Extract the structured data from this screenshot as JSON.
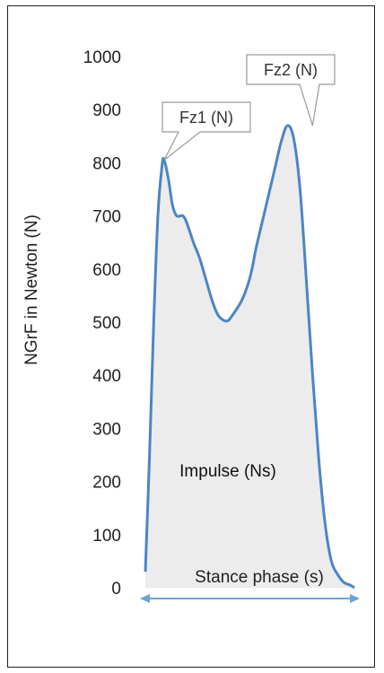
{
  "chart_data": {
    "type": "area",
    "title": "",
    "xlabel": "Stance phase (s)",
    "ylabel": "NGrF in Newton (N)",
    "ylim": [
      0,
      1000
    ],
    "y_ticks": [
      "1000",
      "900",
      "800",
      "700",
      "600",
      "500",
      "400",
      "300",
      "200",
      "100",
      "0"
    ],
    "grid": false,
    "line_color": "#4a86c5",
    "fill_color": "#ececec",
    "arrow_color": "#6aa2d8",
    "area_label": "Impulse (Ns)",
    "annotations": [
      {
        "text": "Fz1 (N)",
        "x": 0.09,
        "y": 805
      },
      {
        "text": "Fz2 (N)",
        "x": 0.8,
        "y": 870
      }
    ],
    "series": [
      {
        "x": [
          0.0,
          0.02,
          0.04,
          0.06,
          0.08,
          0.09,
          0.11,
          0.13,
          0.15,
          0.18,
          0.2,
          0.23,
          0.26,
          0.29,
          0.32,
          0.35,
          0.39,
          0.42,
          0.46,
          0.49,
          0.51,
          0.53,
          0.56,
          0.59,
          0.62,
          0.65,
          0.68,
          0.71,
          0.74,
          0.77,
          0.8,
          0.83,
          0.86,
          0.89,
          0.92,
          0.95,
          0.98,
          1.0
        ],
        "y": [
          30,
          250,
          500,
          700,
          795,
          805,
          770,
          720,
          700,
          700,
          685,
          650,
          620,
          580,
          540,
          512,
          502,
          515,
          540,
          570,
          600,
          640,
          690,
          740,
          790,
          840,
          870,
          845,
          750,
          580,
          400,
          240,
          120,
          50,
          25,
          10,
          5,
          0
        ]
      }
    ]
  }
}
